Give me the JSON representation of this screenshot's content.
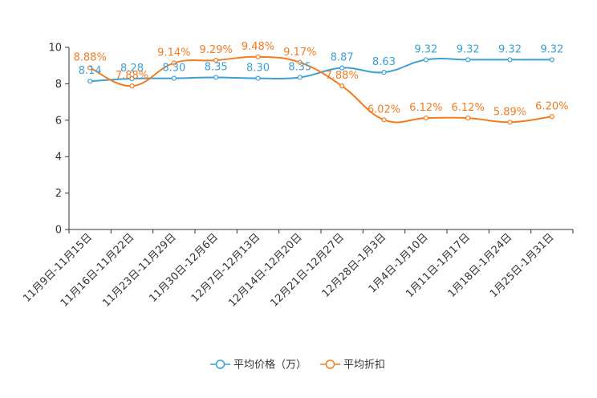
{
  "chart_data": {
    "type": "line",
    "title": "",
    "xlabel": "",
    "ylabel": "",
    "ylim": [
      0,
      10
    ],
    "yticks": [
      "0",
      "2",
      "4",
      "6",
      "8",
      "10"
    ],
    "grid": false,
    "legend_position": "bottom-center",
    "categories": [
      "11月9日-11月15日",
      "11月16日-11月22日",
      "11月23日-11月29日",
      "11月30日-12月6日",
      "12月7日-12月13日",
      "12月14日-12月20日",
      "12月21日-12月27日",
      "12月28日-1月3日",
      "1月4日-1月10日",
      "1月11日-1月17日",
      "1月18日-1月24日",
      "1月25日-1月31日"
    ],
    "series": [
      {
        "name": "平均价格（万）",
        "color": "#3ba1d4",
        "values": [
          8.14,
          8.28,
          8.3,
          8.35,
          8.3,
          8.35,
          8.87,
          8.63,
          9.32,
          9.32,
          9.32,
          9.32
        ],
        "labels": [
          "8.14",
          "8.28",
          "8.30",
          "8.35",
          "8.30",
          "8.35",
          "8.87",
          "8.63",
          "9.32",
          "9.32",
          "9.32",
          "9.32"
        ]
      },
      {
        "name": "平均折扣",
        "color": "#f47b20",
        "values": [
          8.88,
          7.88,
          9.14,
          9.29,
          9.48,
          9.17,
          7.88,
          6.02,
          6.12,
          6.12,
          5.89,
          6.2
        ],
        "labels": [
          "8.88%",
          "7.88%",
          "9.14%",
          "9.29%",
          "9.48%",
          "9.17%",
          "7.88%",
          "6.02%",
          "6.12%",
          "6.12%",
          "5.89%",
          "6.20%"
        ]
      }
    ]
  }
}
